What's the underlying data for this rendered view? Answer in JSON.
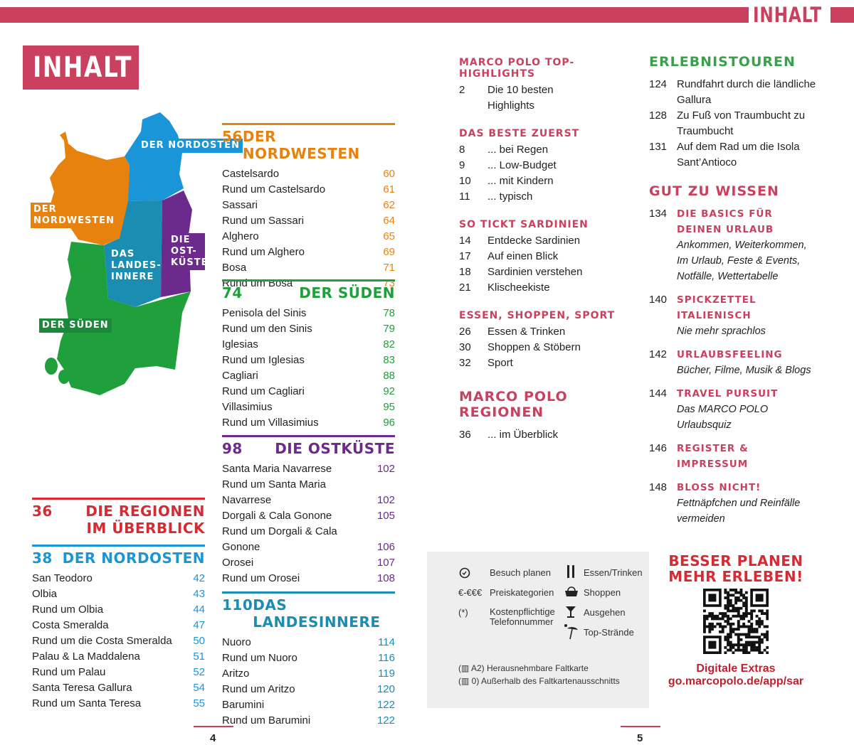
{
  "header": {
    "running_title": "INHALT",
    "title": "INHALT"
  },
  "colors": {
    "accent": "#c9415f",
    "nordwesten": "#e8820e",
    "nordosten": "#1a95d8",
    "landesinnere": "#1b8cb2",
    "ostkueste": "#6b2a8c",
    "sueden": "#20a03c"
  },
  "map": {
    "labels": {
      "nordosten": "DER NORDOSTEN",
      "nordwesten": "DER NORDWESTEN",
      "landesinnere": "DAS LANDES-INNERE",
      "ostkueste": "DIE OST-KÜSTE",
      "sueden": "DER SÜDEN"
    }
  },
  "regions_overview": {
    "page": "36",
    "title": "DIE REGIONEN IM ÜBERBLICK"
  },
  "chapters": [
    {
      "page": "38",
      "title": "DER NORDOSTEN",
      "color": "#1a95d8",
      "entries": [
        [
          "San Teodoro",
          "42"
        ],
        [
          "Olbia",
          "43"
        ],
        [
          "Rund um Olbia",
          "44"
        ],
        [
          "Costa Smeralda",
          "47"
        ],
        [
          "Rund um die Costa Smeralda",
          "50"
        ],
        [
          "Palau & La Maddalena",
          "51"
        ],
        [
          "Rund um Palau",
          "52"
        ],
        [
          "Santa Teresa Gallura",
          "54"
        ],
        [
          "Rund um Santa Teresa",
          "55"
        ]
      ]
    },
    {
      "page": "56",
      "title": "DER NORDWESTEN",
      "color": "#e8820e",
      "entries": [
        [
          "Castelsardo",
          "60"
        ],
        [
          "Rund um Castelsardo",
          "61"
        ],
        [
          "Sassari",
          "62"
        ],
        [
          "Rund um Sassari",
          "64"
        ],
        [
          "Alghero",
          "65"
        ],
        [
          "Rund um Alghero",
          "69"
        ],
        [
          "Bosa",
          "71"
        ],
        [
          "Rund um Bosa",
          "73"
        ]
      ]
    },
    {
      "page": "74",
      "title": "DER SÜDEN",
      "color": "#20a03c",
      "entries": [
        [
          "Penisola del Sinis",
          "78"
        ],
        [
          "Rund um den Sinis",
          "79"
        ],
        [
          "Iglesias",
          "82"
        ],
        [
          "Rund um Iglesias",
          "83"
        ],
        [
          "Cagliari",
          "88"
        ],
        [
          "Rund um Cagliari",
          "92"
        ],
        [
          "Villasimius",
          "95"
        ],
        [
          "Rund um Villasimius",
          "96"
        ]
      ]
    },
    {
      "page": "98",
      "title": "DIE OSTKÜSTE",
      "color": "#6b2a8c",
      "entries": [
        [
          "Santa Maria Navarrese",
          "102"
        ],
        [
          "Rund um Santa Maria",
          ""
        ],
        [
          "Navarrese",
          "102"
        ],
        [
          "Dorgali & Cala Gonone",
          "105"
        ],
        [
          "Rund um Dorgali & Cala",
          ""
        ],
        [
          "Gonone",
          "106"
        ],
        [
          "Orosei",
          "107"
        ],
        [
          "Rund um Orosei",
          "108"
        ]
      ]
    },
    {
      "page": "110",
      "title": "DAS LANDESINNERE",
      "color": "#1b8cb2",
      "entries": [
        [
          "Nuoro",
          "114"
        ],
        [
          "Rund um Nuoro",
          "116"
        ],
        [
          "Aritzo",
          "119"
        ],
        [
          "Rund um Aritzo",
          "120"
        ],
        [
          "Barumini",
          "122"
        ],
        [
          "Rund um Barumini",
          "122"
        ]
      ]
    }
  ],
  "col3": [
    {
      "title": "MARCO POLO TOP-HIGHLIGHTS",
      "entries": [
        [
          "2",
          "Die 10 besten Highlights"
        ]
      ]
    },
    {
      "title": "DAS BESTE ZUERST",
      "entries": [
        [
          "8",
          "... bei Regen"
        ],
        [
          "9",
          "... Low-Budget"
        ],
        [
          "10",
          "... mit Kindern"
        ],
        [
          "11",
          "... typisch"
        ]
      ]
    },
    {
      "title": "SO TICKT SARDINIEN",
      "entries": [
        [
          "14",
          "Entdecke Sardinien"
        ],
        [
          "17",
          "Auf einen Blick"
        ],
        [
          "18",
          "Sardinien verstehen"
        ],
        [
          "21",
          "Klischeekiste"
        ]
      ]
    },
    {
      "title": "ESSEN, SHOPPEN, SPORT",
      "entries": [
        [
          "26",
          "Essen & Trinken"
        ],
        [
          "30",
          "Shoppen & Stöbern"
        ],
        [
          "32",
          "Sport"
        ]
      ]
    }
  ],
  "regionen": {
    "title": "MARCO POLO REGIONEN",
    "entries": [
      [
        "36",
        "... im Überblick"
      ]
    ]
  },
  "erlebnistouren": {
    "title": "ERLEBNISTOUREN",
    "entries": [
      [
        "124",
        "Rundfahrt durch die ländliche Gallura"
      ],
      [
        "128",
        "Zu Fuß von Traumbucht zu Traumbucht"
      ],
      [
        "131",
        "Auf dem Rad um die Isola Sant’Antioco"
      ]
    ]
  },
  "gut_zu_wissen": {
    "title": "GUT ZU WISSEN",
    "entries": [
      [
        "134",
        "DIE BASICS FÜR DEINEN URLAUB",
        "Ankommen, Weiterkommen, Im Urlaub, Feste & Events, Notfälle, Wettertabelle"
      ],
      [
        "140",
        "SPICKZETTEL ITALIENISCH",
        "Nie mehr sprachlos"
      ],
      [
        "142",
        "URLAUBSFEELING",
        "Bücher, Filme, Musik & Blogs"
      ],
      [
        "144",
        "TRAVEL PURSUIT",
        "Das MARCO POLO Urlaubsquiz"
      ],
      [
        "146",
        "REGISTER & IMPRESSUM",
        ""
      ],
      [
        "148",
        "BLOSS NICHT!",
        "Fettnäpfchen und Reinfälle vermeiden"
      ]
    ]
  },
  "legend": {
    "items": [
      {
        "icon": "clock-icon",
        "symbol": "",
        "label": "Besuch planen"
      },
      {
        "icon": "",
        "symbol": "€-€€€",
        "label": "Preiskategorien"
      },
      {
        "icon": "",
        "symbol": "(*)",
        "label": "Kostenpflichtige Telefonnummer"
      },
      {
        "icon": "fork-knife-icon",
        "label": "Essen/Trinken"
      },
      {
        "icon": "basket-icon",
        "label": "Shoppen"
      },
      {
        "icon": "cocktail-icon",
        "label": "Ausgehen"
      },
      {
        "icon": "beach-umbrella-icon",
        "label": "Top-Strände"
      }
    ],
    "map_notes": [
      "(▥ A2) Herausnehmbare Faltkarte",
      "(▥ 0) Außerhalb des Faltkartenausschnitts"
    ]
  },
  "promo": {
    "headline1": "BESSER PLANEN",
    "headline2": "MEHR ERLEBEN!",
    "extras": "Digitale Extras",
    "url": "go.marcopolo.de/app/sar"
  },
  "page_numbers": {
    "left": "4",
    "right": "5"
  }
}
